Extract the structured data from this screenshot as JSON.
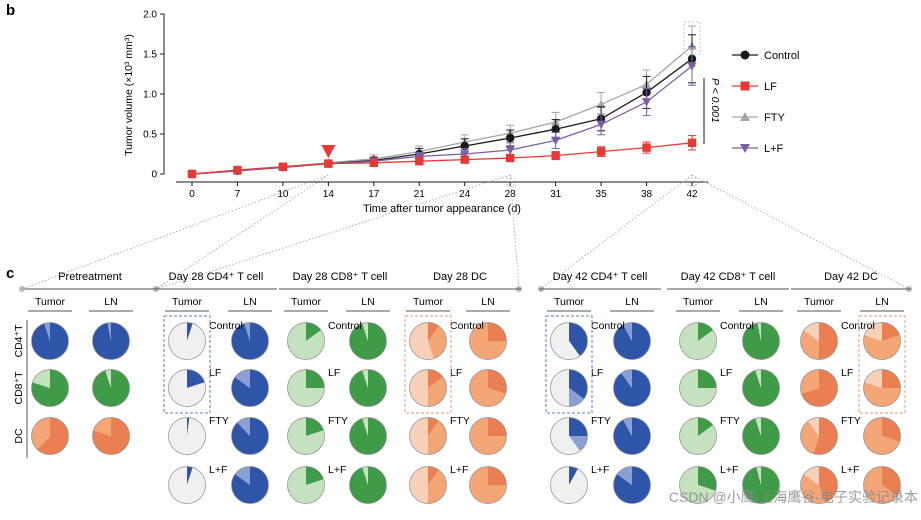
{
  "panel_b": {
    "letter": "b",
    "p_value": "P < 0.001"
  },
  "panel_c": {
    "letter": "c",
    "groups": [
      {
        "title": "Pretreatment",
        "tumor_label": "Tumor",
        "ln_label": "LN"
      },
      {
        "title": "Day 28 CD4⁺ T cell",
        "tumor_label": "Tumor",
        "ln_label": "LN"
      },
      {
        "title": "Day 28 CD8⁺ T cell",
        "tumor_label": "Tumor",
        "ln_label": "LN"
      },
      {
        "title": "Day 28 DC",
        "tumor_label": "Tumor",
        "ln_label": "LN"
      },
      {
        "title": "Day 42 CD4⁺ T cell",
        "tumor_label": "Tumor",
        "ln_label": "LN"
      },
      {
        "title": "Day 42 CD8⁺ T cell",
        "tumor_label": "Tumor",
        "ln_label": "LN"
      },
      {
        "title": "Day 42 DC",
        "tumor_label": "Tumor",
        "ln_label": "LN"
      }
    ],
    "row_labels": [
      "CD4⁺T",
      "CD8⁺T",
      "DC"
    ],
    "condition_labels": [
      "Control",
      "LF",
      "FTY",
      "L+F"
    ]
  },
  "watermark": "CSDN @小鹰-上海鹰谷-电子实验记录本",
  "colors": {
    "control": "#1a1a1a",
    "lf": "#e53935",
    "fty": "#a6a6a6",
    "lf_fty": "#7b5ea7",
    "blue": "#2e55a8",
    "green": "#3f9b47",
    "orange": "#ee8c4f",
    "pie_empty": "#f0f0f0"
  },
  "chart_data": {
    "type": "line",
    "xlabel": "Time after tumor appearance (d)",
    "ylabel": "Tumor volume (×10³ mm³)",
    "x": [
      0,
      7,
      10,
      14,
      17,
      21,
      24,
      28,
      31,
      35,
      38,
      42
    ],
    "xtick_labels": [
      "0",
      "7",
      "10",
      "14",
      "17",
      "21",
      "24",
      "28",
      "31",
      "35",
      "38",
      "42"
    ],
    "yticks": [
      0,
      0.5,
      1.0,
      1.5,
      2.0
    ],
    "ytick_labels": [
      "0",
      "0.5",
      "1.0",
      "1.5",
      "2.0"
    ],
    "ylim": [
      0,
      2.0
    ],
    "treatment_day": 14,
    "series": [
      {
        "name": "Control",
        "marker": "circle",
        "values": [
          0,
          0.04,
          0.09,
          0.13,
          0.17,
          0.25,
          0.35,
          0.45,
          0.56,
          0.69,
          1.02,
          1.44
        ],
        "errors": [
          0.01,
          0.02,
          0.03,
          0.03,
          0.04,
          0.07,
          0.09,
          0.1,
          0.12,
          0.15,
          0.2,
          0.3
        ]
      },
      {
        "name": "LF",
        "marker": "square",
        "values": [
          0,
          0.05,
          0.09,
          0.13,
          0.14,
          0.16,
          0.18,
          0.2,
          0.23,
          0.28,
          0.33,
          0.39
        ],
        "errors": [
          0.01,
          0.02,
          0.02,
          0.03,
          0.03,
          0.03,
          0.04,
          0.04,
          0.05,
          0.06,
          0.07,
          0.09
        ]
      },
      {
        "name": "FTY",
        "marker": "triangle-up",
        "values": [
          0,
          0.04,
          0.09,
          0.14,
          0.19,
          0.28,
          0.4,
          0.51,
          0.65,
          0.87,
          1.12,
          1.6
        ],
        "errors": [
          0.01,
          0.02,
          0.03,
          0.03,
          0.05,
          0.07,
          0.09,
          0.1,
          0.12,
          0.15,
          0.18,
          0.25
        ]
      },
      {
        "name": "L+F",
        "marker": "triangle-down",
        "values": [
          0,
          0.04,
          0.08,
          0.13,
          0.16,
          0.22,
          0.25,
          0.3,
          0.42,
          0.62,
          0.9,
          1.35
        ],
        "errors": [
          0.01,
          0.02,
          0.02,
          0.03,
          0.04,
          0.05,
          0.07,
          0.09,
          0.1,
          0.13,
          0.17,
          0.24
        ]
      }
    ],
    "pies": {
      "pretreatment": {
        "tumor": [
          [
            95,
            5,
            0
          ],
          [
            80,
            20,
            0
          ],
          [
            62,
            38,
            0
          ]
        ],
        "ln": [
          [
            97,
            3,
            0
          ],
          [
            95,
            5,
            0
          ],
          [
            80,
            20,
            0
          ]
        ]
      },
      "day28": {
        "cd4": {
          "tumor": [
            [
              5,
              0,
              95
            ],
            [
              20,
              0,
              80
            ],
            [
              2,
              0,
              98
            ],
            [
              5,
              0,
              95
            ]
          ],
          "ln": [
            [
              95,
              5,
              0
            ],
            [
              85,
              15,
              0
            ],
            [
              88,
              12,
              0
            ],
            [
              85,
              15,
              0
            ]
          ]
        },
        "cd8": {
          "tumor": [
            [
              15,
              85,
              0
            ],
            [
              25,
              75,
              0
            ],
            [
              20,
              80,
              0
            ],
            [
              20,
              80,
              0
            ]
          ],
          "ln": [
            [
              95,
              5,
              0
            ],
            [
              95,
              5,
              0
            ],
            [
              95,
              5,
              0
            ],
            [
              95,
              5,
              0
            ]
          ]
        },
        "dc": {
          "tumor": [
            [
              10,
              35,
              55
            ],
            [
              15,
              35,
              50
            ],
            [
              10,
              40,
              50
            ],
            [
              10,
              40,
              50
            ]
          ],
          "ln": [
            [
              25,
              75,
              0
            ],
            [
              30,
              70,
              0
            ],
            [
              25,
              75,
              0
            ],
            [
              25,
              75,
              0
            ]
          ]
        }
      },
      "day42": {
        "cd4": {
          "tumor": [
            [
              40,
              0,
              60
            ],
            [
              35,
              15,
              50
            ],
            [
              25,
              15,
              60
            ],
            [
              8,
              0,
              92
            ]
          ],
          "ln": [
            [
              92,
              8,
              0
            ],
            [
              90,
              10,
              0
            ],
            [
              92,
              8,
              0
            ],
            [
              85,
              15,
              0
            ]
          ]
        },
        "cd8": {
          "tumor": [
            [
              15,
              85,
              0
            ],
            [
              25,
              75,
              0
            ],
            [
              15,
              85,
              0
            ],
            [
              30,
              70,
              0
            ]
          ],
          "ln": [
            [
              97,
              3,
              0
            ],
            [
              95,
              5,
              0
            ],
            [
              95,
              5,
              0
            ],
            [
              96,
              4,
              0
            ]
          ]
        },
        "dc": {
          "tumor": [
            [
              50,
              35,
              15
            ],
            [
              70,
              30,
              0
            ],
            [
              55,
              35,
              10
            ],
            [
              45,
              40,
              15
            ]
          ],
          "ln": [
            [
              20,
              60,
              20
            ],
            [
              25,
              55,
              20
            ],
            [
              30,
              70,
              0
            ],
            [
              35,
              65,
              0
            ]
          ]
        }
      }
    }
  }
}
